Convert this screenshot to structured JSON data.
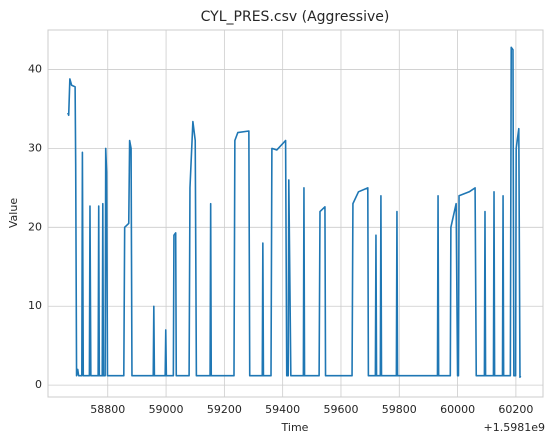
{
  "chart_data": {
    "type": "line",
    "title": "CYL_PRES.csv (Aggressive)",
    "x_label": "Time",
    "y_label": "Value",
    "x_offset_text": "+1.5981e9",
    "grid": true,
    "xlim": [
      58595,
      60293
    ],
    "ylim": [
      -1.5,
      45
    ],
    "xticks": [
      58800,
      59000,
      59200,
      59400,
      59600,
      59800,
      60000,
      60200
    ],
    "yticks": [
      0,
      10,
      20,
      30,
      40
    ],
    "x": [
      58663,
      58666,
      58670,
      58676,
      58688,
      58690,
      58693,
      58697,
      58700,
      58711,
      58713,
      58716,
      58737,
      58739,
      58742,
      58767,
      58769,
      58771,
      58781,
      58783,
      58785,
      58791,
      58793,
      58796,
      58799,
      58855,
      58858,
      58872,
      58875,
      58880,
      58883,
      58956,
      58958,
      58960,
      58997,
      58999,
      59001,
      59025,
      59027,
      59033,
      59035,
      59079,
      59082,
      59092,
      59100,
      59104,
      59151,
      59153,
      59155,
      59233,
      59236,
      59246,
      59284,
      59287,
      59330,
      59332,
      59334,
      59360,
      59363,
      59380,
      59410,
      59414,
      59419,
      59421,
      59428,
      59471,
      59473,
      59475,
      59525,
      59528,
      59545,
      59547,
      59638,
      59641,
      59660,
      59692,
      59694,
      59718,
      59720,
      59722,
      59735,
      59737,
      59739,
      59790,
      59792,
      59794,
      59931,
      59933,
      59935,
      59975,
      59977,
      59995,
      60000,
      60003,
      60005,
      60040,
      60060,
      60064,
      60092,
      60094,
      60096,
      60123,
      60125,
      60127,
      60154,
      60156,
      60158,
      60181,
      60184,
      60190,
      60193,
      60199,
      60201,
      60210,
      60214,
      60216
    ],
    "series": [
      {
        "name": "CYL_PRES",
        "color": "#1f77b4",
        "values": [
          34.5,
          34.2,
          38.8,
          38,
          37.8,
          28,
          1.2,
          2,
          1.2,
          1.2,
          29.5,
          1.2,
          1.2,
          22.7,
          1.2,
          1.2,
          22.7,
          1.2,
          1.2,
          23,
          1.2,
          1.2,
          30,
          27,
          1.2,
          1.2,
          20,
          20.5,
          31,
          30,
          1.2,
          1.2,
          10,
          1.2,
          1.2,
          7,
          1.2,
          1.2,
          19,
          19.3,
          1.2,
          1.2,
          25,
          33.4,
          31,
          1.2,
          1.2,
          23,
          1.2,
          1.2,
          31,
          32,
          32.2,
          1.2,
          1.2,
          18,
          1.2,
          1.2,
          30,
          29.8,
          31,
          1.2,
          1.2,
          26,
          1.2,
          1.2,
          25,
          1.2,
          1.2,
          22,
          22.6,
          1.2,
          1.2,
          23,
          24.5,
          25,
          1.2,
          1.2,
          19,
          1.2,
          1.2,
          24,
          1.2,
          1.2,
          22,
          1.2,
          1.2,
          24,
          1.2,
          1.2,
          20,
          23,
          1.2,
          1.2,
          24,
          24.5,
          25,
          1.2,
          1.2,
          22,
          1.2,
          1.2,
          24.5,
          1.2,
          1.2,
          24,
          1.2,
          1.2,
          42.8,
          42.5,
          1.2,
          1.2,
          30,
          32.5,
          1,
          1.2
        ]
      }
    ]
  }
}
